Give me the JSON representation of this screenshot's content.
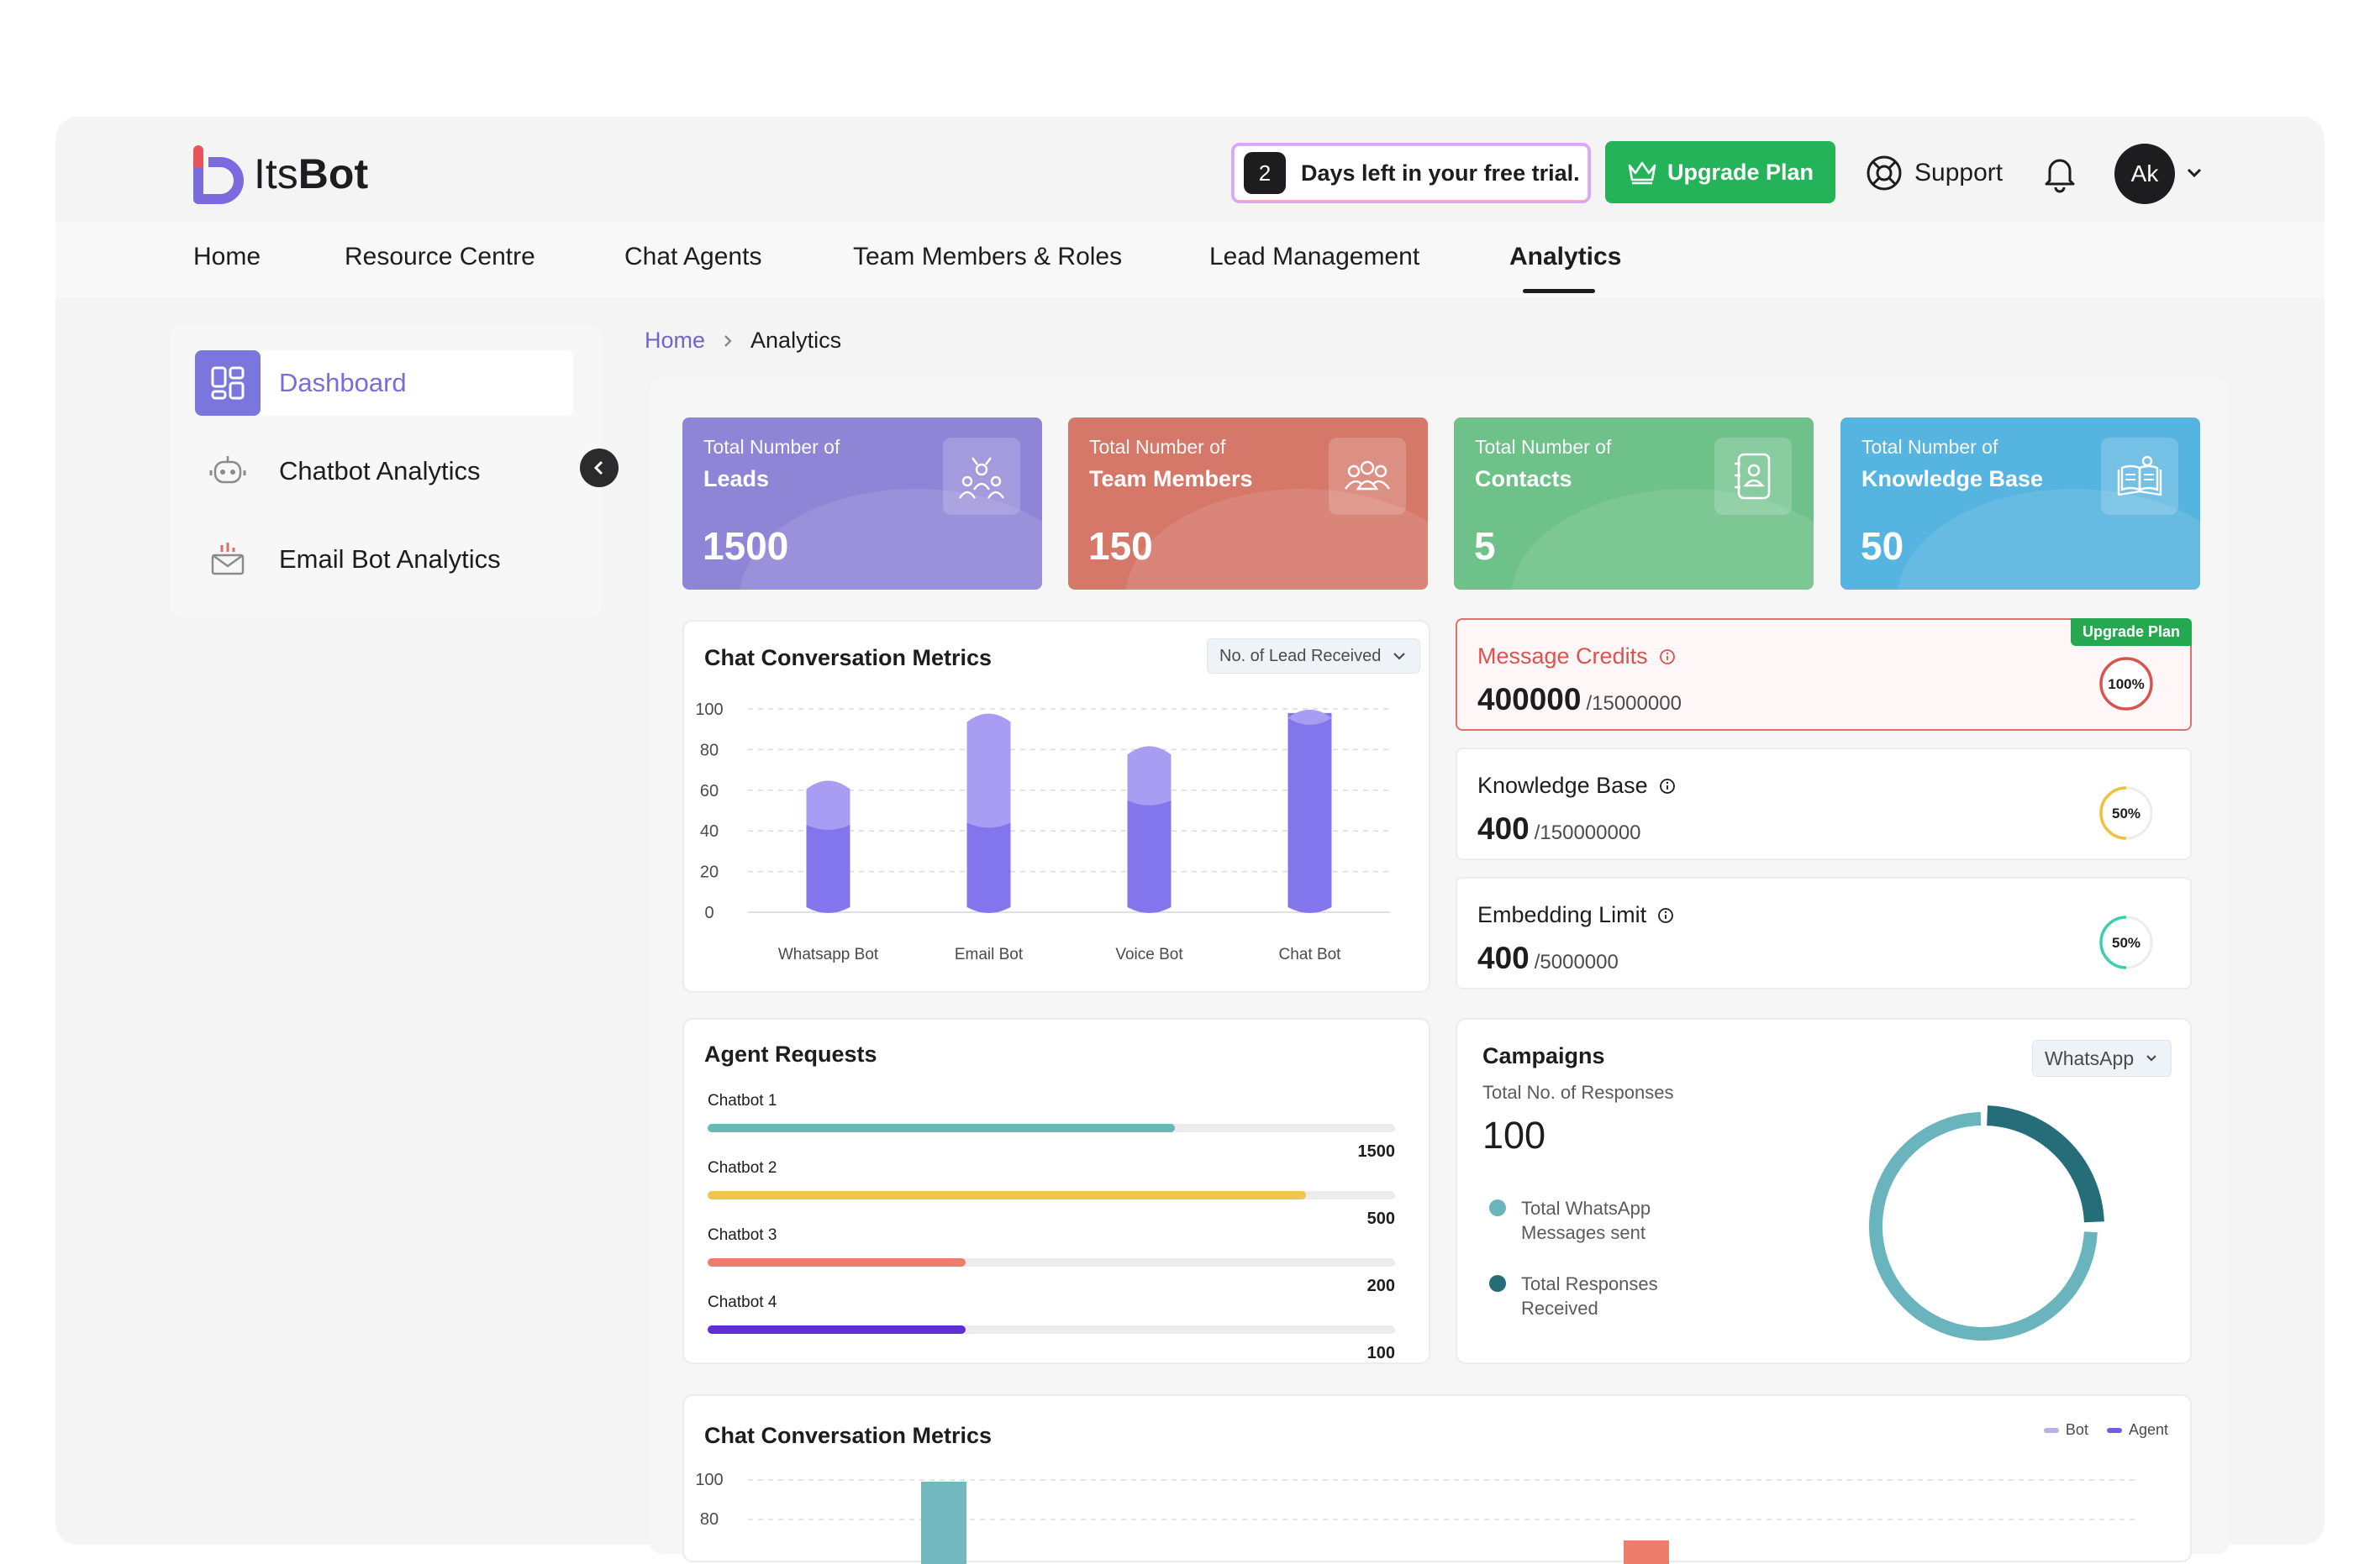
{
  "brand": {
    "name_prefix": "Its",
    "name_bold": "Bot"
  },
  "trial": {
    "days": "2",
    "text": "Days left in your free trial."
  },
  "header": {
    "upgrade_label": "Upgrade Plan",
    "support_label": "Support",
    "avatar_initials": "Ak"
  },
  "nav": {
    "items": [
      "Home",
      "Resource Centre",
      "Chat Agents",
      "Team Members & Roles",
      "Lead Management",
      "Analytics"
    ],
    "active": "Analytics"
  },
  "sidebar": {
    "items": [
      {
        "label": "Dashboard",
        "icon": "dashboard-grid-icon",
        "active": true
      },
      {
        "label": "Chatbot Analytics",
        "icon": "robot-icon",
        "active": false
      },
      {
        "label": "Email Bot Analytics",
        "icon": "email-chart-icon",
        "active": false
      }
    ]
  },
  "breadcrumb": {
    "home": "Home",
    "current": "Analytics"
  },
  "stats": [
    {
      "label1": "Total Number of",
      "label2": "Leads",
      "value": "1500",
      "color": "#8f85d6",
      "icon": "crowd-icon"
    },
    {
      "label1": "Total Number of",
      "label2": "Team Members",
      "value": "150",
      "color": "#d5786a",
      "icon": "team-icon"
    },
    {
      "label1": "Total Number of",
      "label2": "Contacts",
      "value": "5",
      "color": "#6fc18a",
      "icon": "contact-book-icon"
    },
    {
      "label1": "Total Number of",
      "label2": "Knowledge Base",
      "value": "50",
      "color": "#56b4e0",
      "icon": "book-idea-icon"
    }
  ],
  "metrics_chart": {
    "title": "Chat Conversation Metrics",
    "dropdown": "No. of Lead Received"
  },
  "chart_data": [
    {
      "type": "bar",
      "title": "Chat Conversation Metrics",
      "categories": [
        "Whatsapp Bot",
        "Email Bot",
        "Voice Bot",
        "Chat Bot"
      ],
      "series": [
        {
          "values": [
            43,
            44,
            55,
            98
          ]
        },
        {
          "values": [
            20,
            52,
            25,
            0
          ]
        }
      ],
      "yticks": [
        "100",
        "80",
        "60",
        "40",
        "20",
        "0"
      ],
      "ylim": [
        0,
        100
      ],
      "grid": true
    },
    {
      "type": "bar",
      "title": "Chat Conversation Metrics",
      "series": [
        {
          "name": "Bot"
        },
        {
          "name": "Agent"
        }
      ],
      "yticks": [
        "100",
        "80"
      ],
      "legend": "top-right"
    }
  ],
  "credits": [
    {
      "label": "Message Credits",
      "value": "400000",
      "limit": "/15000000",
      "percent": "100%",
      "fraction": 1.0,
      "alert": true,
      "ring_color": "#d9534f",
      "tag": "Upgrade Plan"
    },
    {
      "label": "Knowledge Base",
      "value": "400",
      "limit": "/150000000",
      "percent": "50%",
      "fraction": 0.5,
      "alert": false,
      "ring_color": "#f0c040"
    },
    {
      "label": "Embedding Limit",
      "value": "400",
      "limit": "/5000000",
      "percent": "50%",
      "fraction": 0.5,
      "alert": false,
      "ring_color": "#3ccfaf"
    }
  ],
  "agent_requests": {
    "title": "Agent Requests",
    "rows": [
      {
        "name": "Chatbot 1",
        "value": "1500",
        "fraction": 0.68,
        "color": "#6ab8b6"
      },
      {
        "name": "Chatbot 2",
        "value": "500",
        "fraction": 0.87,
        "color": "#f0c44d"
      },
      {
        "name": "Chatbot 3",
        "value": "200",
        "fraction": 0.375,
        "color": "#ef7d6c"
      },
      {
        "name": "Chatbot 4",
        "value": "100",
        "fraction": 0.375,
        "color": "#5d2fd4"
      }
    ]
  },
  "campaigns": {
    "title": "Campaigns",
    "dropdown": "WhatsApp",
    "subtitle": "Total No. of Responses",
    "value": "100",
    "legend": [
      {
        "label": "Total WhatsApp Messages sent",
        "color": "#6ab5bd"
      },
      {
        "label": "Total Responses Received",
        "color": "#256d79"
      }
    ],
    "donut": {
      "sent_fraction": 0.75,
      "received_fraction": 0.25
    }
  },
  "bottom_chart": {
    "title": "Chat Conversation Metrics",
    "legend": [
      "Bot",
      "Agent"
    ],
    "legend_colors": [
      "#b8b0ea",
      "#6f5ee0"
    ]
  }
}
